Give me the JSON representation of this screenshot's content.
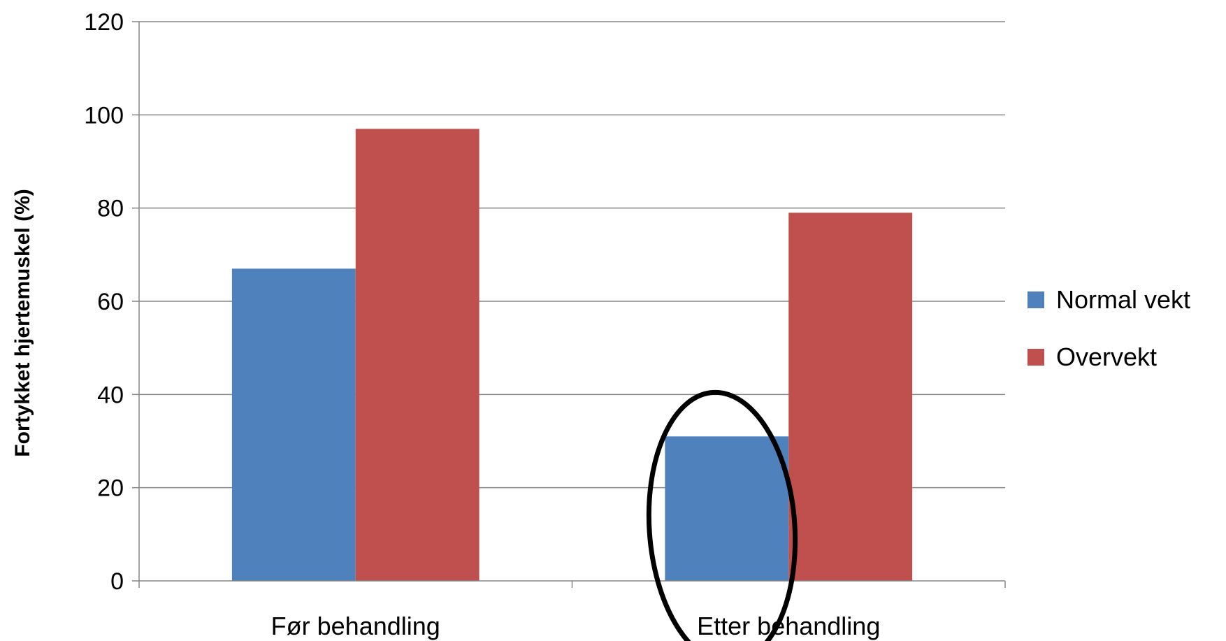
{
  "chart_data": {
    "type": "bar",
    "categories": [
      "Før behandling",
      "Etter behandling"
    ],
    "series": [
      {
        "name": "Normal vekt",
        "color": "#4f81bd",
        "values": [
          67,
          31
        ]
      },
      {
        "name": "Overvekt",
        "color": "#c0504d",
        "values": [
          97,
          79
        ]
      }
    ],
    "title": "",
    "xlabel": "",
    "ylabel": "Fortykket hjertemuskel (%)",
    "ylim": [
      0,
      120
    ],
    "yticks": [
      0,
      20,
      40,
      60,
      80,
      100,
      120
    ],
    "grid": true,
    "legend_position": "right",
    "annotation": {
      "shape": "ellipse",
      "highlights": "Normal vekt – Etter behandling"
    }
  }
}
